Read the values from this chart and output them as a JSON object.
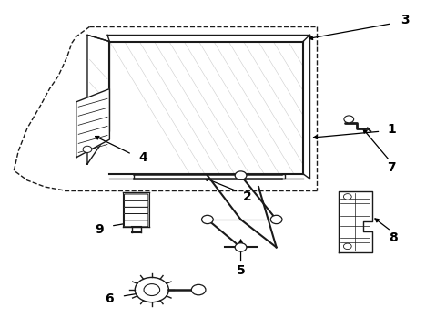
{
  "background_color": "#ffffff",
  "line_color": "#1a1a1a",
  "label_color": "#000000",
  "figsize": [
    4.9,
    3.6
  ],
  "dpi": 100
}
